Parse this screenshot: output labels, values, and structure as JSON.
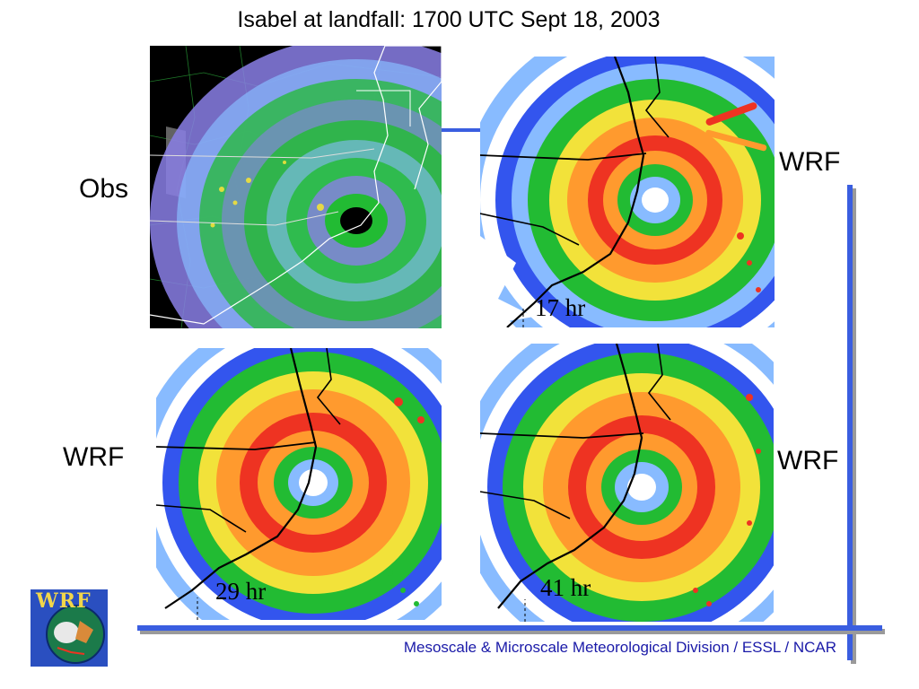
{
  "title": "Isabel at landfall: 1700 UTC Sept 18, 2003",
  "panels": {
    "obs": {
      "label": "Obs"
    },
    "wrf_17": {
      "label": "WRF",
      "forecast": "17 hr"
    },
    "wrf_29": {
      "label": "WRF",
      "forecast": "29 hr"
    },
    "wrf_41": {
      "label": "WRF",
      "forecast": "41 hr"
    }
  },
  "logo": {
    "text": "WRF"
  },
  "footer": "Mesoscale & Microscale Meteorological Division / ESSL / NCAR",
  "colors": {
    "accent_line": "#3a5ee0",
    "footer_text": "#1a1aa8",
    "radar_bg": "#000000",
    "model_bg": "#ffffff",
    "band_blue": "#3355ee",
    "band_lightblue": "#88bbff",
    "band_green": "#22bb33",
    "band_yellow": "#f2e23a",
    "band_orange": "#ff9a2e",
    "band_red": "#ee3322",
    "radar_purple": "#8a7fe6"
  }
}
